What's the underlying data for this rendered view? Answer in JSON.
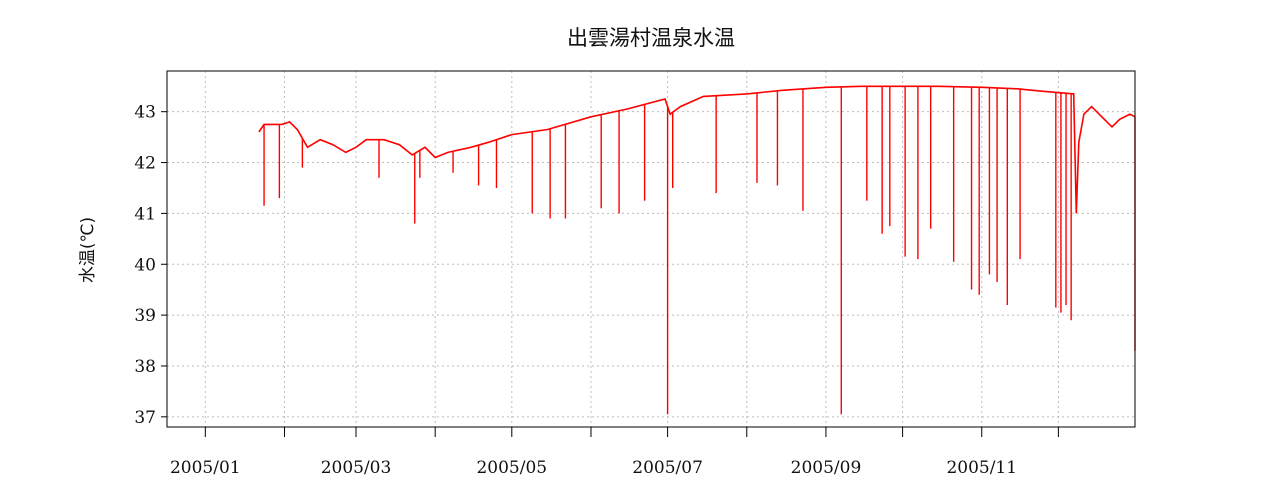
{
  "chart_data": {
    "type": "line",
    "title": "出雲湯村温泉水温",
    "xlabel": "",
    "ylabel": "水温(℃)",
    "ylim": [
      36.8,
      43.8
    ],
    "xlim": [
      "2004-12-17",
      "2005-12-31"
    ],
    "grid": true,
    "yticks": [
      37,
      38,
      39,
      40,
      41,
      42,
      43
    ],
    "xticks": [
      {
        "date": "2005-01-01",
        "label": "2005/01"
      },
      {
        "date": "2005-02-01",
        "label": ""
      },
      {
        "date": "2005-03-01",
        "label": "2005/03"
      },
      {
        "date": "2005-04-01",
        "label": ""
      },
      {
        "date": "2005-05-01",
        "label": "2005/05"
      },
      {
        "date": "2005-06-01",
        "label": ""
      },
      {
        "date": "2005-07-01",
        "label": "2005/07"
      },
      {
        "date": "2005-08-01",
        "label": ""
      },
      {
        "date": "2005-09-01",
        "label": "2005/09"
      },
      {
        "date": "2005-10-01",
        "label": ""
      },
      {
        "date": "2005-11-01",
        "label": "2005/11"
      },
      {
        "date": "2005-12-01",
        "label": ""
      }
    ],
    "series": [
      {
        "color": "#ff0000",
        "baseline": [
          {
            "x": "2005-01-22",
            "y": 42.6
          },
          {
            "x": "2005-01-24",
            "y": 42.75
          },
          {
            "x": "2005-01-31",
            "y": 42.75
          },
          {
            "x": "2005-02-03",
            "y": 42.8
          },
          {
            "x": "2005-02-06",
            "y": 42.65
          },
          {
            "x": "2005-02-10",
            "y": 42.3
          },
          {
            "x": "2005-02-15",
            "y": 42.45
          },
          {
            "x": "2005-02-20",
            "y": 42.35
          },
          {
            "x": "2005-02-25",
            "y": 42.2
          },
          {
            "x": "2005-03-01",
            "y": 42.3
          },
          {
            "x": "2005-03-05",
            "y": 42.45
          },
          {
            "x": "2005-03-12",
            "y": 42.45
          },
          {
            "x": "2005-03-18",
            "y": 42.35
          },
          {
            "x": "2005-03-23",
            "y": 42.15
          },
          {
            "x": "2005-03-28",
            "y": 42.3
          },
          {
            "x": "2005-04-01",
            "y": 42.1
          },
          {
            "x": "2005-04-06",
            "y": 42.2
          },
          {
            "x": "2005-04-15",
            "y": 42.3
          },
          {
            "x": "2005-04-22",
            "y": 42.4
          },
          {
            "x": "2005-05-01",
            "y": 42.55
          },
          {
            "x": "2005-05-15",
            "y": 42.65
          },
          {
            "x": "2005-06-01",
            "y": 42.9
          },
          {
            "x": "2005-06-15",
            "y": 43.05
          },
          {
            "x": "2005-06-30",
            "y": 43.25
          },
          {
            "x": "2005-07-02",
            "y": 42.95
          },
          {
            "x": "2005-07-06",
            "y": 43.1
          },
          {
            "x": "2005-07-15",
            "y": 43.3
          },
          {
            "x": "2005-08-01",
            "y": 43.35
          },
          {
            "x": "2005-08-15",
            "y": 43.42
          },
          {
            "x": "2005-09-01",
            "y": 43.48
          },
          {
            "x": "2005-09-15",
            "y": 43.5
          },
          {
            "x": "2005-10-01",
            "y": 43.5
          },
          {
            "x": "2005-10-15",
            "y": 43.5
          },
          {
            "x": "2005-11-01",
            "y": 43.48
          },
          {
            "x": "2005-11-15",
            "y": 43.45
          },
          {
            "x": "2005-11-25",
            "y": 43.4
          },
          {
            "x": "2005-12-07",
            "y": 43.35
          },
          {
            "x": "2005-12-08",
            "y": 41.0
          },
          {
            "x": "2005-12-09",
            "y": 42.4
          },
          {
            "x": "2005-12-11",
            "y": 42.95
          },
          {
            "x": "2005-12-14",
            "y": 43.1
          },
          {
            "x": "2005-12-18",
            "y": 42.9
          },
          {
            "x": "2005-12-22",
            "y": 42.7
          },
          {
            "x": "2005-12-25",
            "y": 42.85
          },
          {
            "x": "2005-12-29",
            "y": 42.95
          },
          {
            "x": "2005-12-31",
            "y": 42.9
          }
        ],
        "dips": [
          {
            "x": "2005-01-24",
            "y": 41.15
          },
          {
            "x": "2005-01-30",
            "y": 41.3
          },
          {
            "x": "2005-02-08",
            "y": 41.9
          },
          {
            "x": "2005-03-10",
            "y": 41.7
          },
          {
            "x": "2005-03-24",
            "y": 40.8
          },
          {
            "x": "2005-03-26",
            "y": 41.7
          },
          {
            "x": "2005-04-08",
            "y": 41.8
          },
          {
            "x": "2005-04-18",
            "y": 41.55
          },
          {
            "x": "2005-04-25",
            "y": 41.5
          },
          {
            "x": "2005-05-09",
            "y": 41.0
          },
          {
            "x": "2005-05-16",
            "y": 40.9
          },
          {
            "x": "2005-05-22",
            "y": 40.9
          },
          {
            "x": "2005-06-05",
            "y": 41.1
          },
          {
            "x": "2005-06-12",
            "y": 41.0
          },
          {
            "x": "2005-06-22",
            "y": 41.25
          },
          {
            "x": "2005-07-01",
            "y": 37.05
          },
          {
            "x": "2005-07-03",
            "y": 41.5
          },
          {
            "x": "2005-07-20",
            "y": 41.4
          },
          {
            "x": "2005-08-05",
            "y": 41.6
          },
          {
            "x": "2005-08-13",
            "y": 41.55
          },
          {
            "x": "2005-08-23",
            "y": 41.05
          },
          {
            "x": "2005-09-07",
            "y": 37.05
          },
          {
            "x": "2005-09-17",
            "y": 41.25
          },
          {
            "x": "2005-09-23",
            "y": 40.6
          },
          {
            "x": "2005-09-26",
            "y": 40.75
          },
          {
            "x": "2005-10-02",
            "y": 40.15
          },
          {
            "x": "2005-10-07",
            "y": 40.1
          },
          {
            "x": "2005-10-12",
            "y": 40.7
          },
          {
            "x": "2005-10-21",
            "y": 40.05
          },
          {
            "x": "2005-10-28",
            "y": 39.5
          },
          {
            "x": "2005-10-31",
            "y": 39.4
          },
          {
            "x": "2005-11-04",
            "y": 39.8
          },
          {
            "x": "2005-11-07",
            "y": 39.65
          },
          {
            "x": "2005-11-11",
            "y": 39.2
          },
          {
            "x": "2005-11-16",
            "y": 40.1
          },
          {
            "x": "2005-11-30",
            "y": 39.15
          },
          {
            "x": "2005-12-02",
            "y": 39.05
          },
          {
            "x": "2005-12-04",
            "y": 39.2
          },
          {
            "x": "2005-12-06",
            "y": 38.9
          },
          {
            "x": "2005-12-31",
            "y": 38.3
          }
        ]
      }
    ]
  }
}
